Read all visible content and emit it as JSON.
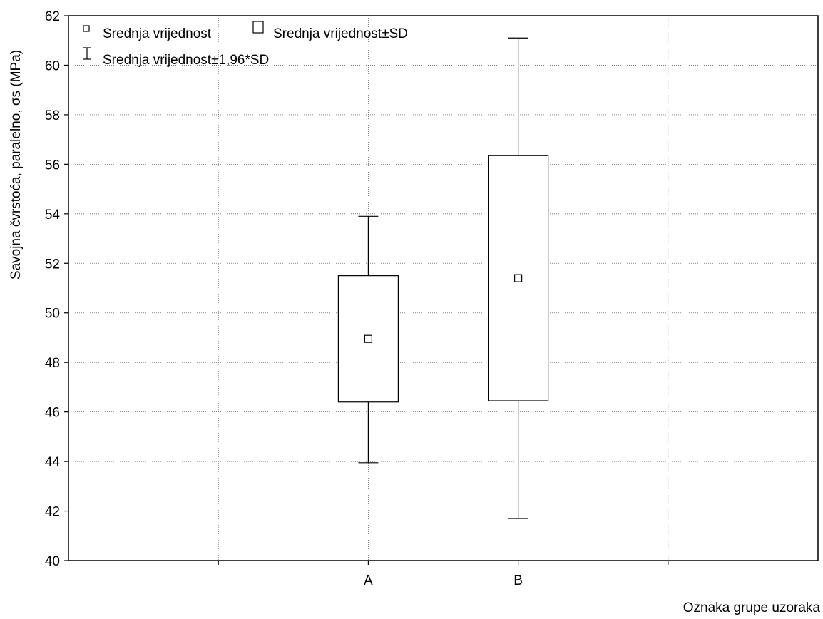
{
  "chart_data": {
    "type": "box",
    "title": "",
    "xlabel": "Oznaka grupe uzoraka",
    "ylabel": "Savojna čvrstoća, paralelno, σs (MPa)",
    "ylim": [
      40,
      62
    ],
    "yticks": [
      40,
      42,
      44,
      46,
      48,
      50,
      52,
      54,
      56,
      58,
      60,
      62
    ],
    "grid": true,
    "legend_position": "top-left",
    "legend": {
      "mean": "Srednja vrijednost",
      "sd": "Srednja vrijednost±SD",
      "ci": "Srednja vrijednost±1,96*SD"
    },
    "categories": [
      "A",
      "B"
    ],
    "groups": [
      {
        "category": "A",
        "mean": 48.95,
        "sd_low": 46.4,
        "sd_high": 51.5,
        "ci_low": 43.95,
        "ci_high": 53.9
      },
      {
        "category": "B",
        "mean": 51.4,
        "sd_low": 46.45,
        "sd_high": 56.35,
        "ci_low": 41.7,
        "ci_high": 61.1
      }
    ]
  }
}
